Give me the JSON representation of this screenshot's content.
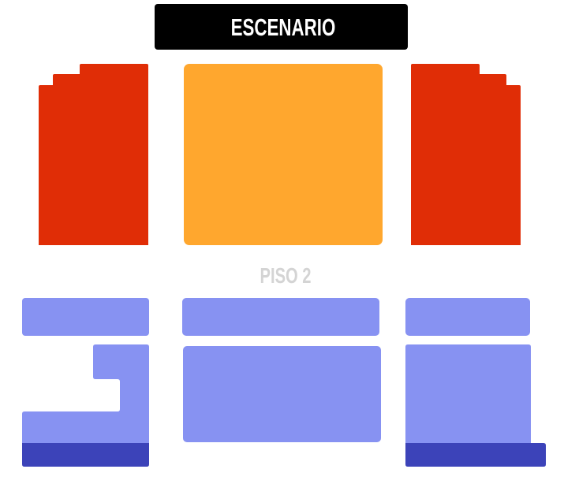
{
  "stage": {
    "label": "ESCENARIO",
    "color": "#000000"
  },
  "floor2": {
    "label": "PISO 2",
    "label_color": "#d4d4d4"
  },
  "colors": {
    "side_front": "#e02d06",
    "center_front": "#ffa72e",
    "floor2": "#8792f2",
    "floor2_back": "#3c43b9"
  },
  "sections": [
    {
      "id": "front-left",
      "floor": 1,
      "color_key": "side_front"
    },
    {
      "id": "front-center",
      "floor": 1,
      "color_key": "center_front"
    },
    {
      "id": "front-right",
      "floor": 1,
      "color_key": "side_front"
    },
    {
      "id": "floor2-left-top",
      "floor": 2,
      "color_key": "floor2"
    },
    {
      "id": "floor2-center-top",
      "floor": 2,
      "color_key": "floor2"
    },
    {
      "id": "floor2-right-top",
      "floor": 2,
      "color_key": "floor2"
    },
    {
      "id": "floor2-left-bottom",
      "floor": 2,
      "color_key": "floor2"
    },
    {
      "id": "floor2-center-bottom",
      "floor": 2,
      "color_key": "floor2"
    },
    {
      "id": "floor2-right-bottom",
      "floor": 2,
      "color_key": "floor2"
    },
    {
      "id": "floor2-left-back",
      "floor": 2,
      "color_key": "floor2_back"
    },
    {
      "id": "floor2-right-back",
      "floor": 2,
      "color_key": "floor2_back"
    }
  ]
}
